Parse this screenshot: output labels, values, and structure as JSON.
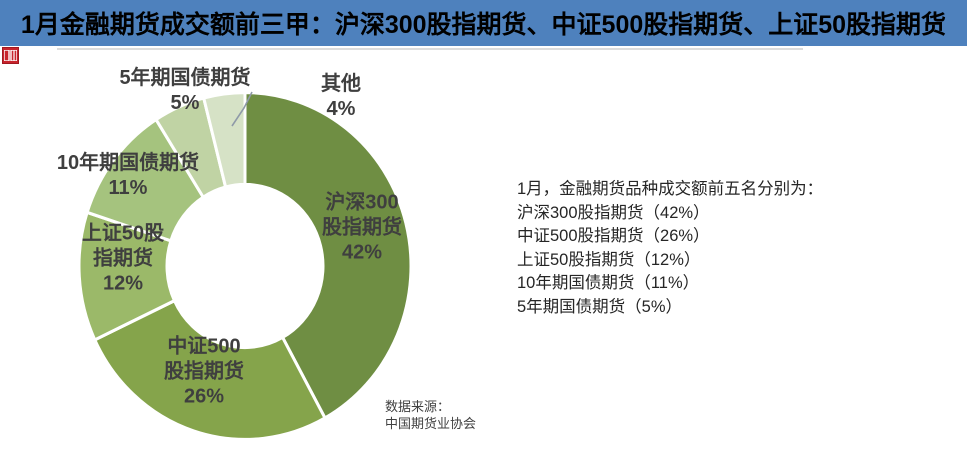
{
  "header": {
    "title": "1月金融期货成交额前三甲：沪深300股指期货、中证500股指期货、上证50股指期货",
    "background_color": "#4E81BD",
    "text_color": "#000000"
  },
  "logo": {
    "icon": "red-seal-logo",
    "color": "#C8242C"
  },
  "chart_data": {
    "type": "pie",
    "donut": true,
    "start_angle_deg": 0,
    "direction": "clockwise",
    "title": "1月金融期货成交额前三甲",
    "legend_position": "none",
    "segments": [
      {
        "label": "沪深300股指期货",
        "value": 42,
        "color": "#6F8E43",
        "label_display": "沪深300\n股指期货\n42%"
      },
      {
        "label": "中证500股指期货",
        "value": 26,
        "color": "#85A44B",
        "label_display": "中证500\n股指期货\n26%"
      },
      {
        "label": "上证50股指期货",
        "value": 12,
        "color": "#9BB969",
        "label_display": "上证50股\n指期货\n12%"
      },
      {
        "label": "10年期国债期货",
        "value": 11,
        "color": "#A5C37E",
        "label_display": "10年期国债期货\n11%"
      },
      {
        "label": "5年期国债期货",
        "value": 5,
        "color": "#C0D3A4",
        "label_display": "5年期国债期货\n5%"
      },
      {
        "label": "其他",
        "value": 4,
        "color": "#D6E2C6",
        "label_display": "其他\n4%"
      }
    ]
  },
  "annotation": {
    "lines": [
      "1月，金融期货品种成交额前五名分别为：",
      "沪深300股指期货（42%）",
      "中证500股指期货（26%）",
      "上证50股指期货（12%）",
      "10年期国债期货（11%）",
      "5年期国债期货（5%）"
    ]
  },
  "source": {
    "text": "数据来源：\n中国期货业协会"
  }
}
